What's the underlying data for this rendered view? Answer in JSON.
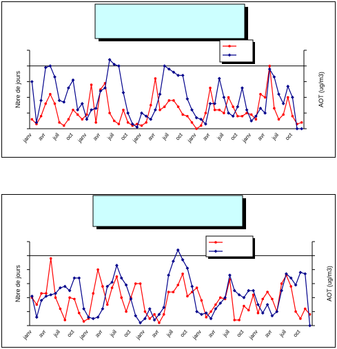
{
  "chart_data": [
    {
      "type": "line",
      "title": "",
      "ylabel": "Nbre de jours",
      "y2label": "AOT (ug/m3)",
      "categories": [
        "janv",
        "",
        "",
        "avr",
        "",
        "",
        "juil",
        "",
        "",
        "oct",
        "",
        "",
        "janv",
        "",
        "",
        "avr",
        "",
        "",
        "juil",
        "",
        "",
        "oct",
        "",
        "",
        "janv",
        "",
        "",
        "avr",
        "",
        "",
        "juil",
        "",
        "",
        "oct",
        "",
        "",
        "janv",
        "",
        "",
        "avr",
        "",
        "",
        "juil",
        "",
        "",
        "oct",
        "",
        "",
        "janv",
        "",
        "",
        "avr",
        "",
        "",
        "juil",
        "",
        "",
        "oct",
        "",
        ""
      ],
      "y_ticks": 5,
      "grid_line_at": 4,
      "ylim": [
        0,
        5
      ],
      "series": [
        {
          "name": "",
          "color": "#ff0000",
          "values": [
            0.6,
            0.3,
            0.8,
            1.6,
            2.2,
            1.6,
            0.4,
            0.2,
            0.6,
            1.2,
            0.9,
            0.6,
            0.9,
            2.8,
            0.4,
            2.5,
            2.9,
            1.0,
            0.5,
            0.3,
            1.2,
            0.4,
            0.2,
            0.3,
            0.2,
            0.4,
            1.5,
            3.2,
            1.2,
            1.4,
            1.8,
            1.8,
            1.4,
            0.9,
            0.8,
            0.4,
            0.0,
            0.2,
            1.0,
            2.6,
            1.2,
            1.2,
            1.0,
            2.0,
            1.4,
            0.8,
            0.8,
            1.0,
            0.9,
            0.6,
            2.2,
            2.0,
            4.0,
            1.3,
            0.6,
            0.9,
            2.0,
            0.8,
            0.3,
            0.4
          ]
        },
        {
          "name": "",
          "color": "#00008b",
          "values": [
            3.0,
            0.4,
            1.8,
            3.9,
            4.0,
            3.3,
            1.8,
            1.7,
            2.6,
            3.1,
            1.2,
            1.6,
            0.6,
            1.2,
            1.3,
            2.4,
            2.6,
            4.4,
            4.1,
            4.0,
            2.3,
            1.0,
            0.3,
            0.1,
            1.0,
            0.8,
            0.6,
            1.2,
            2.2,
            4.0,
            3.8,
            3.6,
            3.4,
            3.4,
            1.9,
            1.2,
            0.7,
            0.6,
            0.3,
            1.6,
            1.6,
            3.2,
            2.0,
            1.0,
            0.8,
            1.4,
            2.6,
            1.2,
            0.5,
            0.8,
            1.3,
            1.0,
            3.8,
            3.3,
            2.2,
            1.6,
            2.7,
            2.0,
            0.0,
            0.0
          ]
        }
      ]
    },
    {
      "type": "line",
      "title": "",
      "ylabel": "Nbre de jours",
      "y2label": "AOT (ug/m3)",
      "categories": [
        "janv",
        "",
        "",
        "avr",
        "",
        "",
        "juil",
        "",
        "",
        "oct",
        "",
        "",
        "janv",
        "",
        "",
        "avr",
        "",
        "",
        "juil",
        "",
        "",
        "oct",
        "",
        "",
        "janv",
        "",
        "",
        "avr",
        "",
        "",
        "juil",
        "",
        "",
        "oct",
        "",
        "",
        "janv",
        "",
        "",
        "avr",
        "",
        "",
        "juil",
        "",
        "",
        "oct",
        "",
        "",
        "janv",
        "",
        "",
        "avr",
        "",
        "",
        "juil",
        "",
        "",
        "oct",
        "",
        ""
      ],
      "y_ticks": 6,
      "grid_line_at": 5,
      "ylim": [
        0,
        6
      ],
      "series": [
        {
          "name": "",
          "color": "#ff0000",
          "values": [
            2.0,
            1.5,
            2.3,
            2.3,
            4.8,
            2.0,
            1.2,
            0.4,
            2.0,
            1.9,
            0.9,
            0.3,
            0.5,
            2.3,
            4.0,
            2.8,
            1.5,
            2.7,
            3.5,
            2.0,
            1.0,
            2.0,
            3.0,
            3.0,
            1.0,
            0.5,
            0.8,
            0.2,
            0.8,
            2.4,
            2.4,
            2.9,
            3.7,
            2.1,
            2.4,
            2.7,
            1.8,
            0.6,
            1.0,
            1.5,
            2.0,
            1.9,
            3.3,
            0.4,
            0.4,
            1.4,
            1.1,
            2.2,
            0.9,
            1.9,
            2.4,
            1.9,
            1.0,
            3.0,
            3.6,
            2.8,
            1.0,
            0.5,
            1.2,
            0.8
          ]
        },
        {
          "name": "",
          "color": "#00008b",
          "values": [
            2.1,
            0.6,
            1.8,
            2.1,
            2.2,
            2.3,
            2.7,
            2.8,
            2.5,
            3.4,
            3.4,
            1.2,
            0.6,
            0.5,
            0.6,
            1.2,
            2.8,
            3.1,
            4.3,
            3.4,
            2.9,
            1.9,
            0.7,
            0.2,
            0.5,
            1.2,
            0.4,
            0.8,
            1.3,
            3.6,
            4.6,
            5.4,
            4.7,
            4.1,
            2.8,
            1.0,
            0.8,
            0.9,
            0.5,
            1.2,
            1.6,
            2.0,
            3.6,
            2.5,
            2.2,
            2.0,
            2.5,
            2.5,
            1.5,
            0.9,
            1.5,
            0.7,
            1.0,
            2.5,
            3.7,
            3.4,
            2.9,
            3.8,
            3.7,
            0.0
          ]
        }
      ]
    }
  ]
}
